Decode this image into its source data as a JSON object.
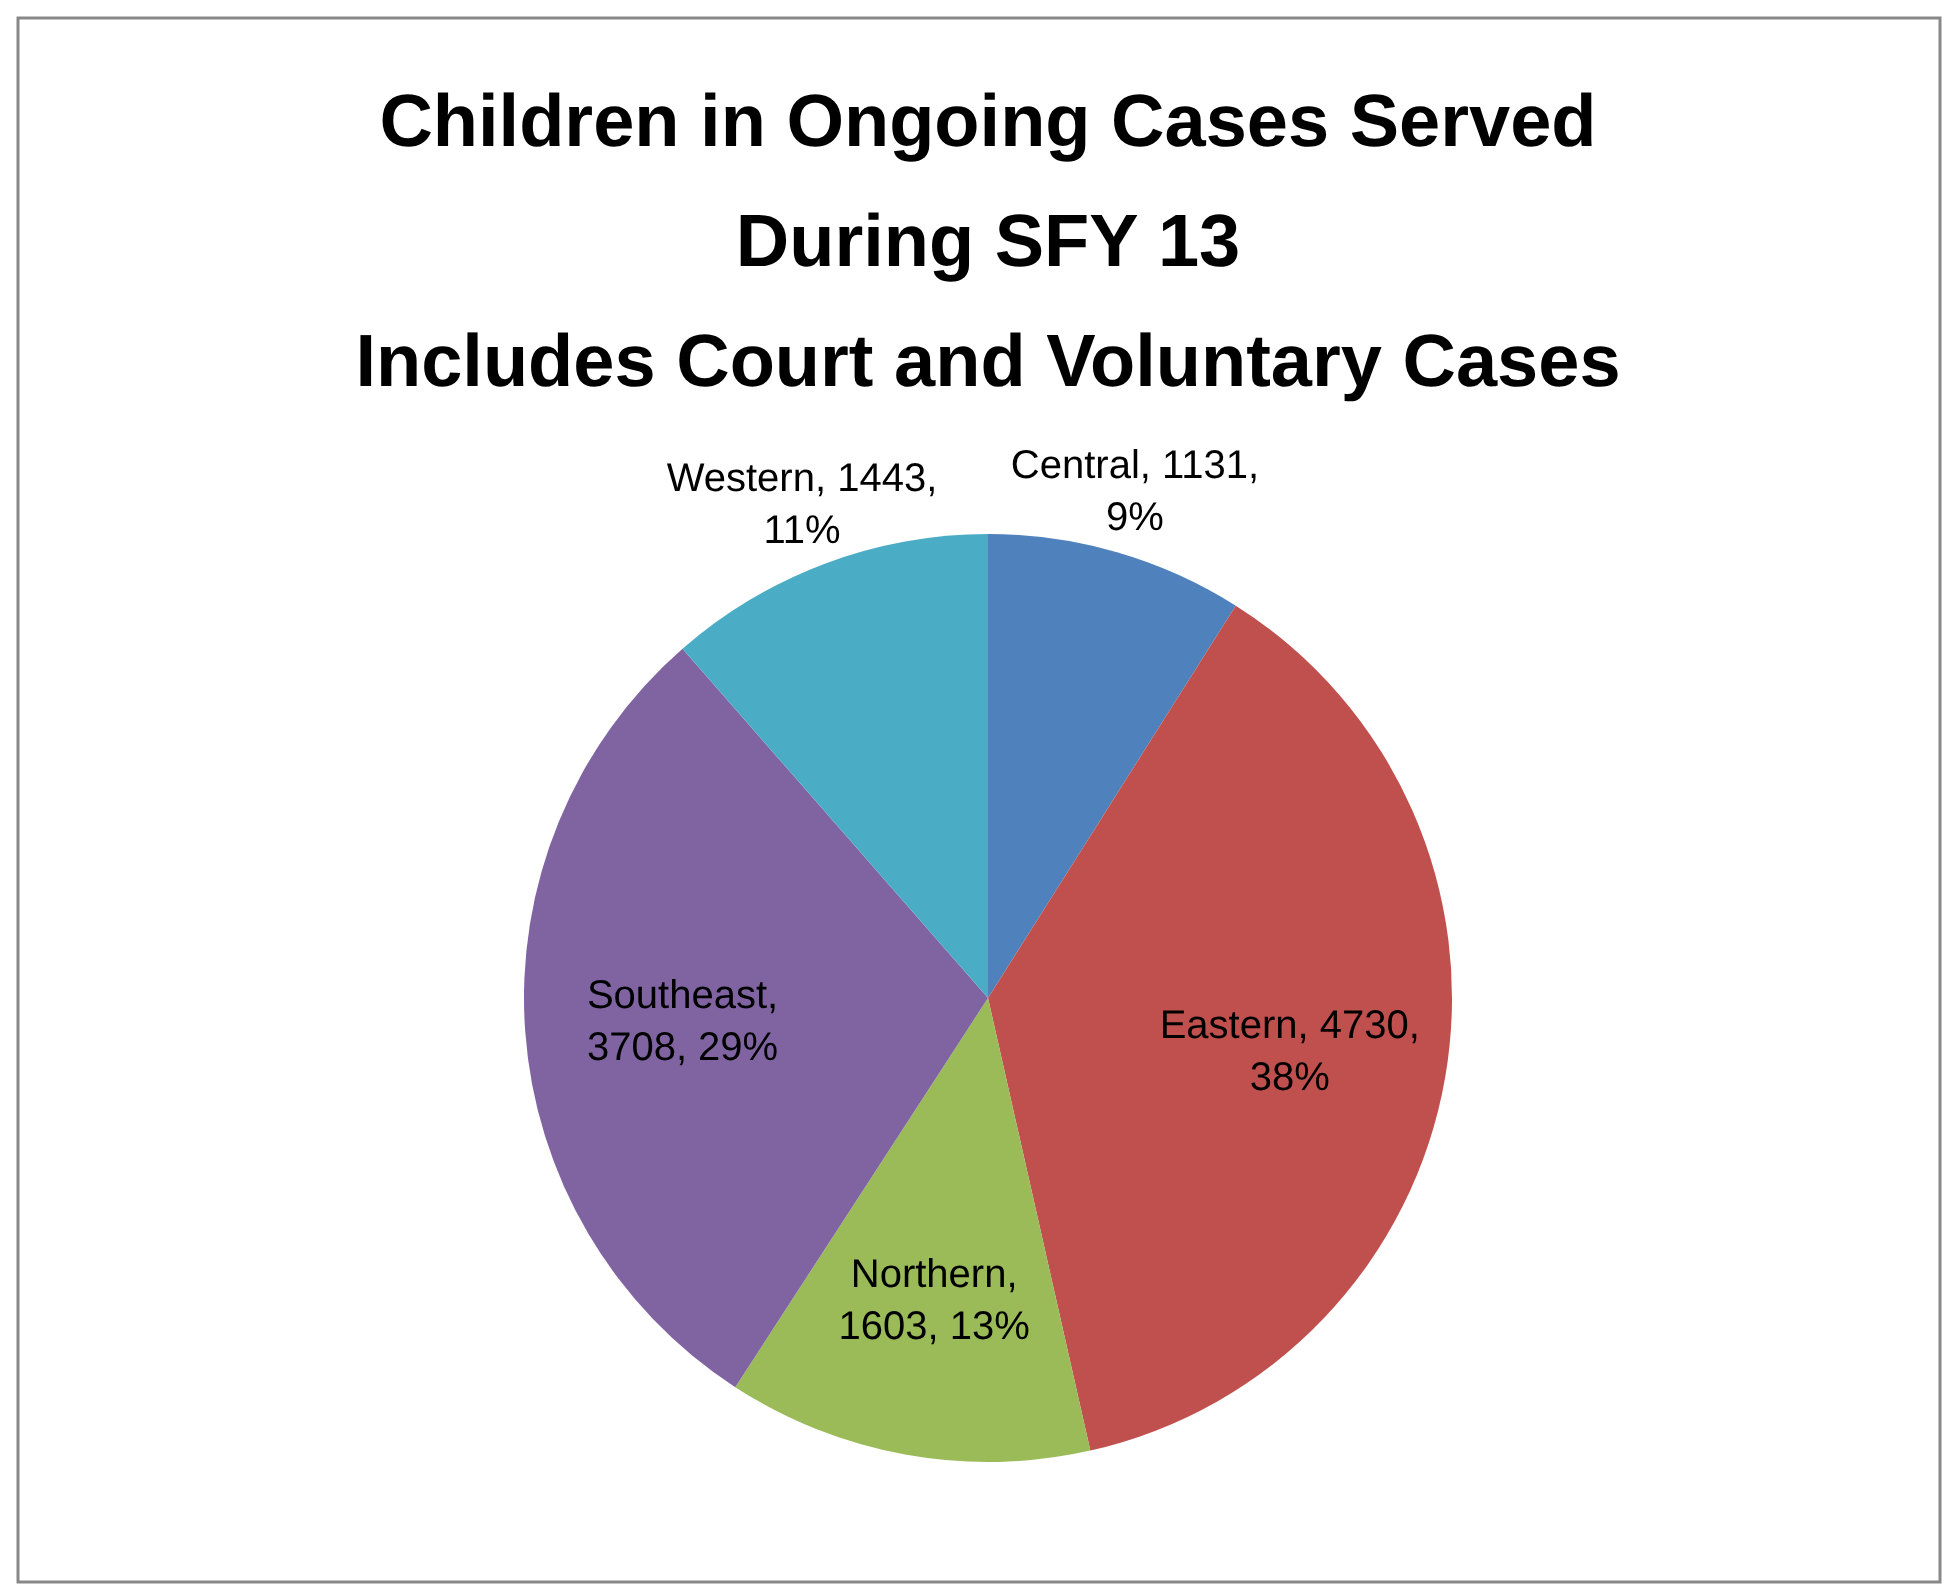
{
  "chart_data": {
    "type": "pie",
    "title": "Children in Ongoing Cases Served\nDuring SFY 13",
    "subtitle": "Includes Court and Voluntary Cases",
    "categories": [
      "Central",
      "Eastern",
      "Northern",
      "Southeast",
      "Western"
    ],
    "values": [
      1131,
      4730,
      1603,
      3708,
      1443
    ],
    "value_labels": [
      ", 1131, 9%",
      ", 4730, 38%",
      ", 1603, 13%",
      ", 3708, 29%",
      ", 1443, 11%"
    ],
    "colors": [
      "#4f81bd",
      "#c0504d",
      "#9bbb59",
      "#8064a2",
      "#4bacc6"
    ],
    "legend": false
  }
}
